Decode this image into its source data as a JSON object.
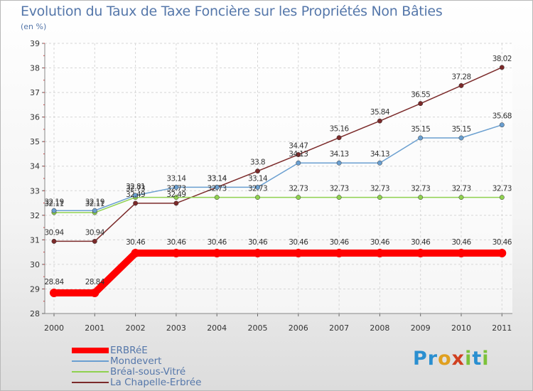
{
  "chart_data": {
    "type": "line",
    "title": "Evolution du Taux de Taxe Foncière sur les Propriétés Non Bâties",
    "unit_label": "(en %)",
    "x": [
      "2000",
      "2001",
      "2002",
      "2003",
      "2004",
      "2005",
      "2006",
      "2007",
      "2008",
      "2009",
      "2010",
      "2011"
    ],
    "ylim": [
      28,
      39
    ],
    "yticks": [
      "28",
      "29",
      "30",
      "31",
      "32",
      "33",
      "34",
      "35",
      "36",
      "37",
      "38",
      "39"
    ],
    "grid": true,
    "legend_position": "bottom-left",
    "series": [
      {
        "name": "ERBRéE",
        "color": "#ff0000",
        "values": [
          28.84,
          28.84,
          30.46,
          30.46,
          30.46,
          30.46,
          30.46,
          30.46,
          30.46,
          30.46,
          30.46,
          30.46
        ],
        "labels": [
          "28.84",
          "28.84",
          "30.46",
          "30.46",
          "30.46",
          "30.46",
          "30.46",
          "30.46",
          "30.46",
          "30.46",
          "30.46",
          "30.46"
        ]
      },
      {
        "name": "Mondevert",
        "color": "#6a9fd0",
        "values": [
          32.19,
          32.19,
          32.81,
          33.14,
          33.14,
          33.14,
          34.13,
          34.13,
          34.13,
          35.15,
          35.15,
          35.68
        ],
        "labels": [
          "32.19",
          "32.19",
          "32.81",
          "33.14",
          "33.14",
          "33.14",
          "34.13",
          "34.13",
          "34.13",
          "35.15",
          "35.15",
          "35.68"
        ]
      },
      {
        "name": "Bréal-sous-Vitré",
        "color": "#8fd14f",
        "values": [
          32.11,
          32.11,
          32.73,
          32.73,
          32.73,
          32.73,
          32.73,
          32.73,
          32.73,
          32.73,
          32.73,
          32.73
        ],
        "labels": [
          "32.11",
          "32.11",
          "32.73",
          "32.73",
          "32.73",
          "32.73",
          "32.73",
          "32.73",
          "32.73",
          "32.73",
          "32.73",
          "32.73"
        ]
      },
      {
        "name": "La Chapelle-Erbrée",
        "color": "#7b2a2a",
        "values": [
          30.94,
          30.94,
          32.49,
          32.49,
          33.14,
          33.8,
          34.47,
          35.16,
          35.84,
          36.55,
          37.28,
          38.02
        ],
        "labels": [
          "30.94",
          "30.94",
          "32.49",
          "32.49",
          "33.14",
          "33.8",
          "34.47",
          "35.16",
          "35.84",
          "36.55",
          "37.28",
          "38.02"
        ]
      }
    ]
  },
  "brand": {
    "p1": "Pr",
    "p2": "o",
    "p3": "x",
    "p4": "i",
    "p5": "t",
    "p6": "i"
  }
}
